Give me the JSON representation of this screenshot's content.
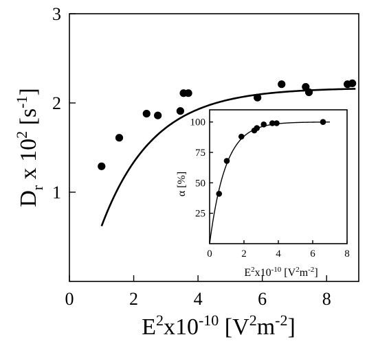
{
  "chart_data": [
    {
      "type": "scatter",
      "xlabel_parts": {
        "base": "E",
        "sup1": "2",
        "mid": "x10",
        "sup2": "-10",
        "unit_open": " [V",
        "sup3": "2",
        "unit_mid": "m",
        "sup4": "-2",
        "unit_close": "]"
      },
      "ylabel_parts": {
        "base": "D",
        "sub": "r",
        "mid": " x 10",
        "sup1": "2",
        "unit_open": " [s",
        "sup2": "-1",
        "unit_close": "]"
      },
      "xlim": [
        0,
        9
      ],
      "ylim": [
        0,
        3
      ],
      "x_ticks": [
        "0",
        "2",
        "4",
        "6",
        "8"
      ],
      "x_tick_values": [
        0,
        2,
        4,
        6,
        8
      ],
      "y_ticks": [
        "1",
        "2",
        "3"
      ],
      "y_tick_values": [
        1,
        2,
        3
      ],
      "series": [
        {
          "points": [
            [
              1.0,
              1.29
            ],
            [
              1.55,
              1.61
            ],
            [
              2.4,
              1.88
            ],
            [
              2.75,
              1.86
            ],
            [
              3.45,
              1.91
            ],
            [
              3.55,
              2.11
            ],
            [
              3.7,
              2.11
            ],
            [
              5.85,
              2.06
            ],
            [
              6.6,
              2.21
            ],
            [
              7.35,
              2.18
            ],
            [
              7.45,
              2.12
            ],
            [
              8.65,
              2.21
            ],
            [
              8.8,
              2.22
            ]
          ],
          "fit": {
            "model": "exponential saturation",
            "x_from": 1.0,
            "x_to": 8.9,
            "asymptote": 2.17,
            "amplitude": 1.55,
            "rate": 0.62
          }
        }
      ]
    },
    {
      "type": "scatter",
      "xlabel_parts": {
        "base": "E",
        "sup1": "2",
        "mid": "x10",
        "sup2": "-10",
        "unit_open": " [V",
        "sup3": "2",
        "unit_mid": "m",
        "sup4": "-2",
        "unit_close": "]"
      },
      "ylabel": "α [%]",
      "xlim": [
        0,
        8
      ],
      "ylim": [
        0,
        110
      ],
      "x_ticks": [
        "0",
        "2",
        "4",
        "6",
        "8"
      ],
      "x_tick_values": [
        0,
        2,
        4,
        6,
        8
      ],
      "y_ticks": [
        "25",
        "50",
        "75",
        "100"
      ],
      "y_tick_values": [
        25,
        50,
        75,
        100
      ],
      "series": [
        {
          "points": [
            [
              0.55,
              41
            ],
            [
              1.0,
              68
            ],
            [
              1.85,
              88
            ],
            [
              2.6,
              93
            ],
            [
              2.75,
              95
            ],
            [
              3.15,
              98
            ],
            [
              3.65,
              99
            ],
            [
              3.9,
              99
            ],
            [
              6.6,
              100
            ]
          ],
          "fit": {
            "model": "exponential saturation",
            "x_from": 0.0,
            "x_to": 7.0,
            "asymptote": 100,
            "rate": 1.07
          }
        }
      ]
    }
  ]
}
